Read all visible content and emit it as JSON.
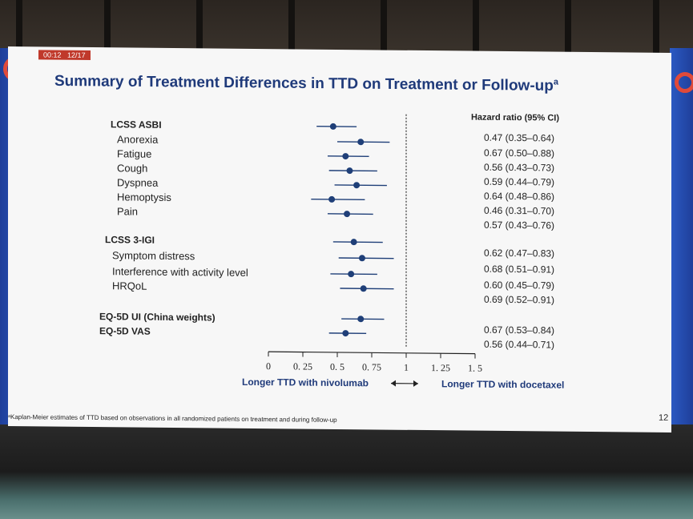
{
  "slide": {
    "time": "00:12",
    "page": "12/17",
    "title": "Summary of Treatment Differences in TTD on Treatment or Follow-up",
    "title_sup": "a",
    "footnote": "ᵃKaplan-Meier estimates of TTD based on observations in all randomized patients on treatment and during follow-up",
    "number": "12"
  },
  "colors": {
    "title": "#1f3a7a",
    "marker": "#1f3f78",
    "text": "#222222"
  },
  "chart_data": {
    "type": "scatter",
    "subtype": "forest",
    "ci_header": "Hazard ratio (95% CI)",
    "x_ticks": [
      "0",
      "0. 25",
      "0. 5",
      "0. 75",
      "1",
      "1. 25",
      "1. 5"
    ],
    "xlim": [
      0,
      1.5
    ],
    "reference_line": 1,
    "left_caption": "Longer TTD with nivolumab",
    "right_caption": "Longer TTD with docetaxel",
    "rows": [
      {
        "label": "LCSS ASBI",
        "header": true,
        "hr": 0.47,
        "lo": 0.35,
        "hi": 0.64,
        "ci_text": "0.47 (0.35–0.64)"
      },
      {
        "label": "Anorexia",
        "hr": 0.67,
        "lo": 0.5,
        "hi": 0.88,
        "ci_text": "0.67 (0.50–0.88)"
      },
      {
        "label": "Fatigue",
        "hr": 0.56,
        "lo": 0.43,
        "hi": 0.73,
        "ci_text": "0.56 (0.43–0.73)"
      },
      {
        "label": "Cough",
        "hr": 0.59,
        "lo": 0.44,
        "hi": 0.79,
        "ci_text": "0.59 (0.44–0.79)"
      },
      {
        "label": "Dyspnea",
        "hr": 0.64,
        "lo": 0.48,
        "hi": 0.86,
        "ci_text": "0.64 (0.48–0.86)"
      },
      {
        "label": "Hemoptysis",
        "hr": 0.46,
        "lo": 0.31,
        "hi": 0.7,
        "ci_text": "0.46 (0.31–0.70)"
      },
      {
        "label": "Pain",
        "hr": 0.57,
        "lo": 0.43,
        "hi": 0.76,
        "ci_text": "0.57 (0.43–0.76)"
      },
      {
        "label": "LCSS 3-IGI",
        "header": true,
        "hr": 0.62,
        "lo": 0.47,
        "hi": 0.83,
        "ci_text": "0.62 (0.47–0.83)"
      },
      {
        "label": "Symptom distress",
        "hr": 0.68,
        "lo": 0.51,
        "hi": 0.91,
        "ci_text": "0.68 (0.51–0.91)"
      },
      {
        "label": "Interference with activity level",
        "hr": 0.6,
        "lo": 0.45,
        "hi": 0.79,
        "ci_text": "0.60 (0.45–0.79)"
      },
      {
        "label": "HRQoL",
        "hr": 0.69,
        "lo": 0.52,
        "hi": 0.91,
        "ci_text": "0.69 (0.52–0.91)"
      },
      {
        "label": "EQ-5D UI (China weights)",
        "header": true,
        "hr": 0.67,
        "lo": 0.53,
        "hi": 0.84,
        "ci_text": "0.67 (0.53–0.84)"
      },
      {
        "label": "EQ-5D VAS",
        "header": true,
        "hr": 0.56,
        "lo": 0.44,
        "hi": 0.71,
        "ci_text": "0.56 (0.44–0.71)"
      }
    ]
  }
}
